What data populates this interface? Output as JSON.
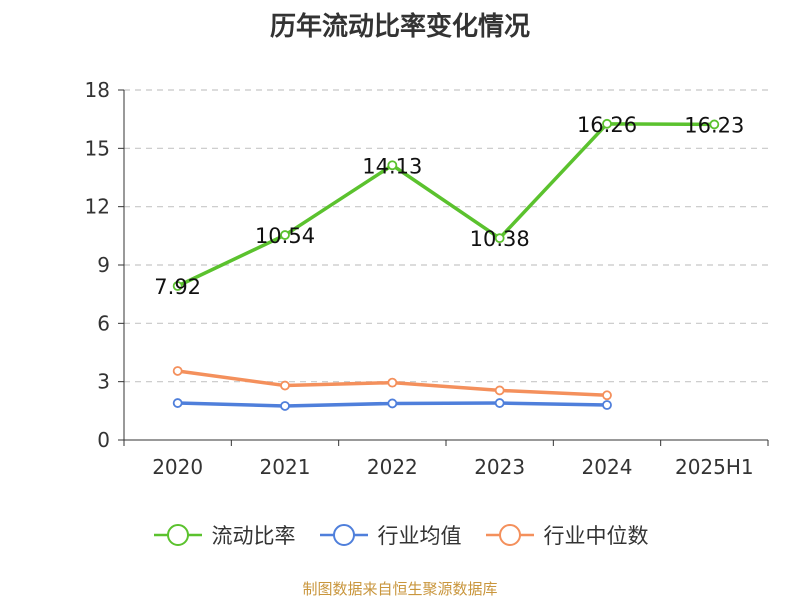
{
  "chart_data": {
    "type": "line",
    "title": "历年流动比率变化情况",
    "categories": [
      "2020",
      "2021",
      "2022",
      "2023",
      "2024",
      "2025H1"
    ],
    "ylim": [
      0,
      18
    ],
    "yticks": [
      0,
      3,
      6,
      9,
      12,
      15,
      18
    ],
    "grid": true,
    "legend_position": "bottom",
    "series": [
      {
        "name": "流动比率",
        "color": "#5bc22e",
        "values": [
          7.92,
          10.54,
          14.13,
          10.38,
          16.26,
          16.23
        ],
        "labels": [
          "7.92",
          "10.54",
          "14.13",
          "10.38",
          "16.26",
          "16.23"
        ]
      },
      {
        "name": "行业均值",
        "color": "#4f7fdb",
        "values": [
          1.9,
          1.75,
          1.88,
          1.9,
          1.8,
          null
        ]
      },
      {
        "name": "行业中位数",
        "color": "#f4905c",
        "values": [
          3.55,
          2.8,
          2.95,
          2.55,
          2.3,
          null
        ]
      }
    ]
  },
  "source_note": "制图数据来自恒生聚源数据库"
}
